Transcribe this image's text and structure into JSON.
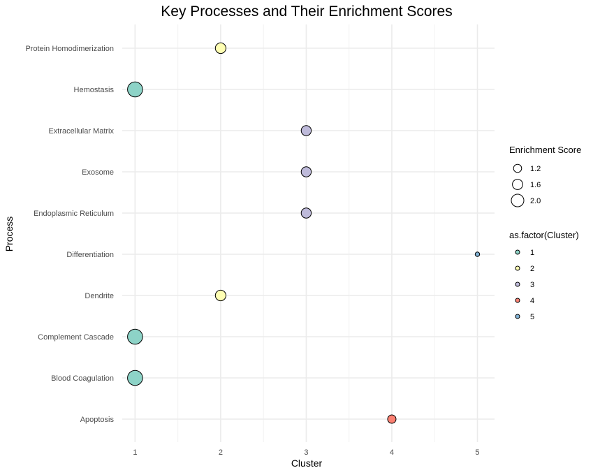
{
  "chart_data": {
    "type": "scatter",
    "title": "Key Processes and Their Enrichment Scores",
    "xlabel": "Cluster",
    "ylabel": "Process",
    "xlim": [
      0.85,
      5.2
    ],
    "x_ticks": [
      1,
      2,
      3,
      4,
      5
    ],
    "grid": true,
    "categories": [
      "Apoptosis",
      "Blood Coagulation",
      "Complement Cascade",
      "Dendrite",
      "Differentiation",
      "Endoplasmic Reticulum",
      "Exosome",
      "Extracellular Matrix",
      "Hemostasis",
      "Protein Homodimerization"
    ],
    "points": [
      {
        "process": "Apoptosis",
        "cluster": 4,
        "enrichment_score": 1.0
      },
      {
        "process": "Blood Coagulation",
        "cluster": 1,
        "enrichment_score": 2.2
      },
      {
        "process": "Complement Cascade",
        "cluster": 1,
        "enrichment_score": 2.2
      },
      {
        "process": "Dendrite",
        "cluster": 2,
        "enrichment_score": 1.4
      },
      {
        "process": "Differentiation",
        "cluster": 5,
        "enrichment_score": 0.3
      },
      {
        "process": "Endoplasmic Reticulum",
        "cluster": 3,
        "enrichment_score": 1.3
      },
      {
        "process": "Exosome",
        "cluster": 3,
        "enrichment_score": 1.3
      },
      {
        "process": "Extracellular Matrix",
        "cluster": 3,
        "enrichment_score": 1.3
      },
      {
        "process": "Hemostasis",
        "cluster": 1,
        "enrichment_score": 2.2
      },
      {
        "process": "Protein Homodimerization",
        "cluster": 2,
        "enrichment_score": 1.4
      }
    ],
    "size_legend": {
      "title": "Enrichment Score",
      "values": [
        1.2,
        1.6,
        2.0
      ],
      "labels": [
        "1.2",
        "1.6",
        "2.0"
      ]
    },
    "color_legend": {
      "title": "as.factor(Cluster)",
      "labels": [
        "1",
        "2",
        "3",
        "4",
        "5"
      ],
      "colors": [
        "#8DD3C7",
        "#FFFFB3",
        "#BEBADA",
        "#FB8072",
        "#80B1D3"
      ]
    },
    "legend_position": "right"
  }
}
